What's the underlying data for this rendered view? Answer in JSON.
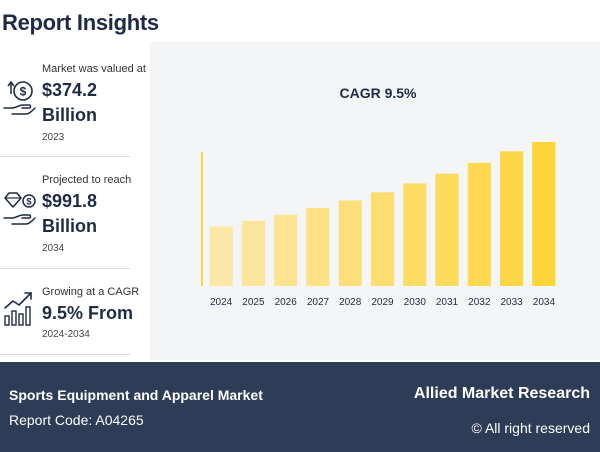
{
  "header": {
    "title": "Report Insights"
  },
  "stats": [
    {
      "caption": "Market was valued at",
      "value": "$374.2",
      "unit": "Billion",
      "year": "2023",
      "icon": "money-hand-icon"
    },
    {
      "caption": "Projected to reach",
      "value": "$991.8",
      "unit": "Billion",
      "year": "2034",
      "icon": "diamond-hand-icon"
    },
    {
      "caption": "Growing at a CAGR",
      "value": "9.5% From",
      "unit": "",
      "year": "2024-2034",
      "icon": "growth-chart-icon"
    }
  ],
  "chart_data": {
    "type": "bar",
    "title": "CAGR 9.5%",
    "categories": [
      "2024",
      "2025",
      "2026",
      "2027",
      "2028",
      "2029",
      "2030",
      "2031",
      "2032",
      "2033",
      "2034"
    ],
    "values": [
      409.7,
      448.7,
      491.3,
      538.0,
      589.1,
      645.1,
      706.4,
      773.5,
      847.0,
      927.5,
      991.8
    ],
    "ylim": [
      0,
      1050
    ],
    "grid": false,
    "colors": {
      "start": "#fbe7a6",
      "end": "#fdd43a",
      "axis": "#fdd43a"
    }
  },
  "footer": {
    "report_title": "Sports Equipment and Apparel Market",
    "report_code": "Report Code: A04265",
    "brand": "Allied Market Research",
    "copyright": "© All right reserved"
  }
}
